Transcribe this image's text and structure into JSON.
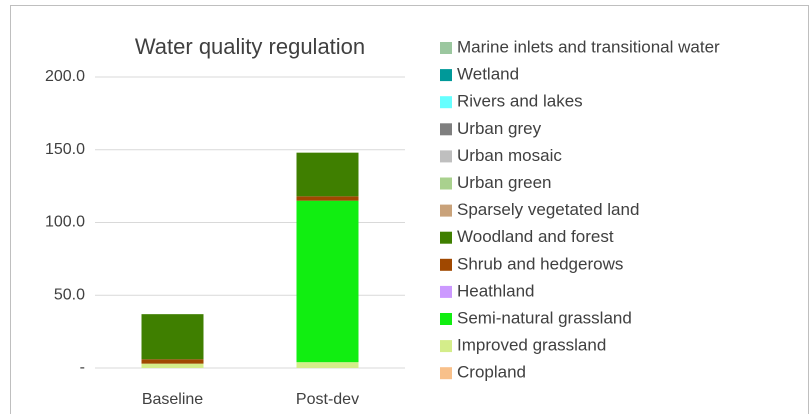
{
  "chart_data": {
    "type": "stacked_bar",
    "title": "Water quality regulation",
    "categories": [
      "Baseline",
      "Post-dev"
    ],
    "series": [
      {
        "name": "Marine inlets and transitional water",
        "color": "#9bc79f",
        "values": [
          0,
          0
        ]
      },
      {
        "name": "Wetland",
        "color": "#009999",
        "values": [
          0,
          0
        ]
      },
      {
        "name": "Rivers and lakes",
        "color": "#66ffff",
        "values": [
          0,
          0
        ]
      },
      {
        "name": "Urban grey",
        "color": "#7f7f7f",
        "values": [
          0,
          0
        ]
      },
      {
        "name": "Urban mosaic",
        "color": "#bfbfbf",
        "values": [
          0,
          0
        ]
      },
      {
        "name": "Urban green",
        "color": "#a9d18e",
        "values": [
          0,
          0
        ]
      },
      {
        "name": "Sparsely vegetated land",
        "color": "#c9a27a",
        "values": [
          0,
          0
        ]
      },
      {
        "name": "Woodland and forest",
        "color": "#3f7f00",
        "values": [
          31,
          30
        ]
      },
      {
        "name": "Shrub and hedgerows",
        "color": "#a04800",
        "values": [
          3,
          3
        ]
      },
      {
        "name": "Heathland",
        "color": "#cc99ff",
        "values": [
          0,
          0
        ]
      },
      {
        "name": "Semi-natural grassland",
        "color": "#11ee11",
        "values": [
          0,
          111
        ]
      },
      {
        "name": "Improved grassland",
        "color": "#d4ed8a",
        "values": [
          3,
          4
        ]
      },
      {
        "name": "Cropland",
        "color": "#f8c08a",
        "values": [
          0,
          0
        ]
      }
    ],
    "ylim": [
      0,
      200
    ],
    "yticks": [
      {
        "value": 0,
        "label": "-"
      },
      {
        "value": 50,
        "label": "50.0"
      },
      {
        "value": 100,
        "label": "100.0"
      },
      {
        "value": 150,
        "label": "150.0"
      },
      {
        "value": 200,
        "label": "200.0"
      }
    ],
    "grid": true,
    "legend": "right"
  }
}
